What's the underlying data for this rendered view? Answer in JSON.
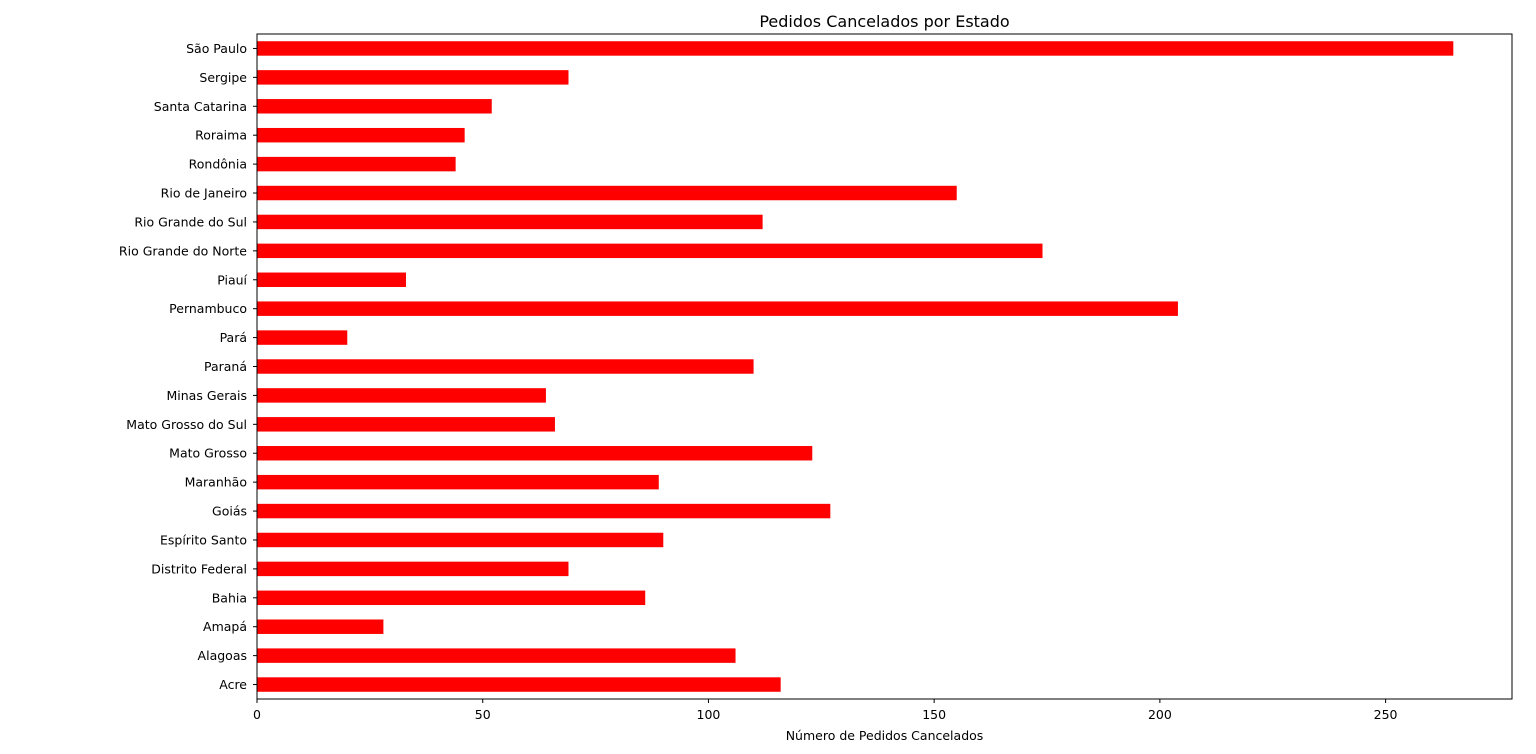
{
  "chart_data": {
    "type": "bar",
    "orientation": "horizontal",
    "title": "Pedidos Cancelados por Estado",
    "xlabel": "Número de Pedidos Cancelados",
    "ylabel": "",
    "xlim": [
      0,
      278
    ],
    "xticks": [
      0,
      50,
      100,
      150,
      200,
      250
    ],
    "grid": false,
    "bar_color": "#ff0000",
    "categories": [
      "Acre",
      "Alagoas",
      "Amapá",
      "Bahia",
      "Distrito Federal",
      "Espírito Santo",
      "Goiás",
      "Maranhão",
      "Mato Grosso",
      "Mato Grosso do Sul",
      "Minas Gerais",
      "Paraná",
      "Pará",
      "Pernambuco",
      "Piauí",
      "Rio Grande do Norte",
      "Rio Grande do Sul",
      "Rio de Janeiro",
      "Rondônia",
      "Roraima",
      "Santa Catarina",
      "Sergipe",
      "São Paulo"
    ],
    "values": [
      116,
      106,
      28,
      86,
      69,
      90,
      127,
      89,
      123,
      66,
      64,
      110,
      20,
      204,
      33,
      174,
      112,
      155,
      44,
      46,
      52,
      69,
      265
    ]
  }
}
